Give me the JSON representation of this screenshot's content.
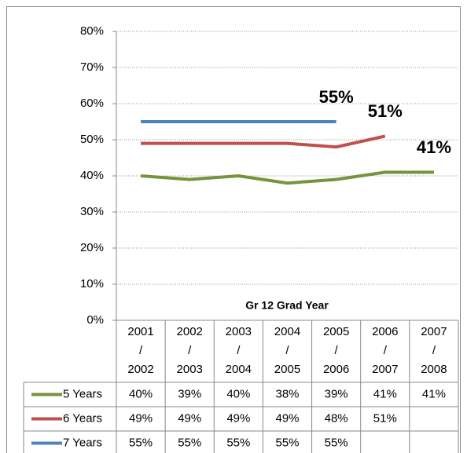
{
  "chart_data": {
    "type": "line",
    "x_label": "Gr 12 Grad Year",
    "categories": [
      "2001\n/\n2002",
      "2002\n/\n2003",
      "2003\n/\n2004",
      "2004\n/\n2005",
      "2005\n/\n2006",
      "2006\n/\n2007",
      "2007\n/\n2008"
    ],
    "series": [
      {
        "name": "5 Years",
        "color": "#77933c",
        "values": [
          40,
          39,
          40,
          38,
          39,
          41,
          41
        ],
        "value_labels": [
          "40%",
          "39%",
          "40%",
          "38%",
          "39%",
          "41%",
          "41%"
        ]
      },
      {
        "name": "6 Years",
        "color": "#c0504d",
        "values": [
          49,
          49,
          49,
          49,
          48,
          51,
          null
        ],
        "value_labels": [
          "49%",
          "49%",
          "49%",
          "49%",
          "48%",
          "51%",
          null
        ]
      },
      {
        "name": "7 Years",
        "color": "#4f81bd",
        "values": [
          55,
          55,
          55,
          55,
          55,
          null,
          null
        ],
        "value_labels": [
          "55%",
          "55%",
          "55%",
          "55%",
          "55%",
          null,
          null
        ]
      }
    ],
    "annotations": [
      {
        "text": "55%",
        "series": 2,
        "color": "#1f497d"
      },
      {
        "text": "51%",
        "series": 1,
        "color": "#c0504d"
      },
      {
        "text": "41%",
        "series": 0,
        "color": "#4f6228"
      }
    ],
    "ylim": [
      0,
      80
    ],
    "yticks": [
      {
        "value": 0,
        "label": "0%"
      },
      {
        "value": 10,
        "label": "10%"
      },
      {
        "value": 20,
        "label": "20%"
      },
      {
        "value": 30,
        "label": "30%"
      },
      {
        "value": 40,
        "label": "40%"
      },
      {
        "value": 50,
        "label": "50%"
      },
      {
        "value": 60,
        "label": "60%"
      },
      {
        "value": 70,
        "label": "70%"
      },
      {
        "value": 80,
        "label": "80%"
      }
    ],
    "grid": true
  }
}
